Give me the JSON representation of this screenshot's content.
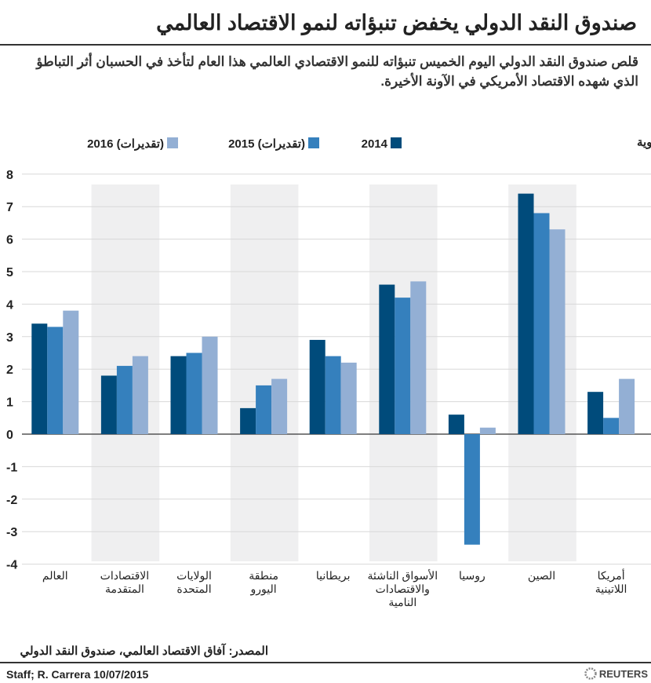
{
  "title": "صندوق النقد الدولي يخفض تنبؤاته لنمو الاقتصاد العالمي",
  "subtitle": "قلص صندوق النقد الدولي اليوم الخميس تنبؤاته للنمو الاقتصادي العالمي هذا العام لتأخذ في الحسبان أثر التباطؤ الذي شهده الاقتصاد الأمريكي في الآونة الأخيرة.",
  "source": "المصدر: آفاق الاقتصاد العالمي، صندوق النقد الدولي",
  "credit": "Staff; R. Carrera 10/07/2015",
  "logo": "REUTERS",
  "chart_data": {
    "type": "bar",
    "ylabel": "النمو، التغير بالنسبة المئوية",
    "ylim": [
      -4,
      8
    ],
    "yticks": [
      8,
      7,
      6,
      5,
      4,
      3,
      2,
      1,
      0,
      -1,
      -2,
      -3,
      -4
    ],
    "grid": true,
    "legend_position": "top",
    "categories": [
      "العالم",
      "الاقتصادات المتقدمة",
      "الولايات المتحدة",
      "منطقة اليورو",
      "بريطانيا",
      "الأسواق الناشئة والاقتصادات النامية",
      "روسيا",
      "الصين",
      "أمريكا اللاتينية"
    ],
    "category_lines": [
      [
        "العالم"
      ],
      [
        "الاقتصادات",
        "المتقدمة"
      ],
      [
        "الولايات",
        "المتحدة"
      ],
      [
        "منطقة",
        "اليورو"
      ],
      [
        "بريطانيا"
      ],
      [
        "الأسواق الناشئة",
        "والاقتصادات",
        "النامية"
      ],
      [
        "روسيا"
      ],
      [
        "الصين"
      ],
      [
        "أمريكا",
        "اللاتينية"
      ]
    ],
    "series": [
      {
        "name": "2014",
        "color": "#004b7b",
        "values": [
          3.4,
          1.8,
          2.4,
          0.8,
          2.9,
          4.6,
          0.6,
          7.4,
          1.3
        ]
      },
      {
        "name": "2015 (تقديرات)",
        "color": "#3580bd",
        "values": [
          3.3,
          2.1,
          2.5,
          1.5,
          2.4,
          4.2,
          -3.4,
          6.8,
          0.5
        ]
      },
      {
        "name": "2016 (تقديرات)",
        "color": "#93afd4",
        "values": [
          3.8,
          2.4,
          3.0,
          1.7,
          2.2,
          4.7,
          0.2,
          6.3,
          1.7
        ]
      }
    ]
  }
}
